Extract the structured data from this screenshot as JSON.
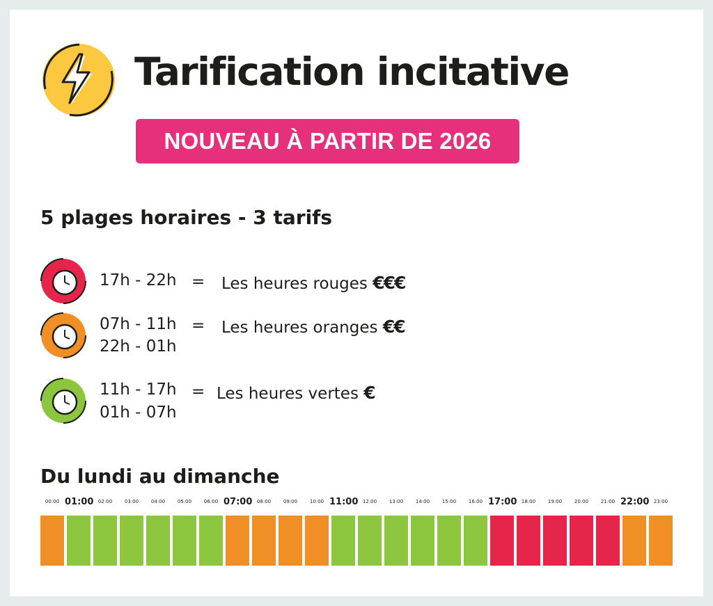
{
  "header": {
    "title": "Tarification incitative",
    "badge": "NOUVEAU À PARTIR DE 2026",
    "logo_icon": "lightning-bolt-icon"
  },
  "subtitle": "5 plages horaires - 3 tarifs",
  "tiers": [
    {
      "color": "#e5264a",
      "times": [
        "17h - 22h"
      ],
      "equals": "=",
      "label": "Les heures rouges",
      "price": "€€€",
      "icon": "clock-icon"
    },
    {
      "color": "#f08f25",
      "times": [
        "07h - 11h",
        "22h - 01h"
      ],
      "equals": "=",
      "label": "Les heures oranges",
      "price": "€€",
      "icon": "clock-icon"
    },
    {
      "color": "#8cc63f",
      "times": [
        "11h - 17h",
        "01h - 07h"
      ],
      "equals": "=",
      "label": "Les heures vertes",
      "price": "€",
      "icon": "clock-icon"
    }
  ],
  "schedule": {
    "title": "Du lundi au dimanche",
    "hours": [
      "00:00",
      "01:00",
      "02:00",
      "03:00",
      "04:00",
      "05:00",
      "06:00",
      "07:00",
      "08:00",
      "09:00",
      "10:00",
      "11:00",
      "12:00",
      "13:00",
      "14:00",
      "15:00",
      "16:00",
      "17:00",
      "18:00",
      "19:00",
      "20:00",
      "21:00",
      "22:00",
      "23:00"
    ],
    "highlighted_hours": [
      "01:00",
      "07:00",
      "11:00",
      "17:00",
      "22:00"
    ],
    "slots": [
      "orange",
      "green",
      "green",
      "green",
      "green",
      "green",
      "green",
      "orange",
      "orange",
      "orange",
      "orange",
      "green",
      "green",
      "green",
      "green",
      "green",
      "green",
      "red",
      "red",
      "red",
      "red",
      "red",
      "orange",
      "orange"
    ],
    "colors": {
      "red": "#e5264a",
      "orange": "#f08f25",
      "green": "#8cc63f"
    }
  }
}
